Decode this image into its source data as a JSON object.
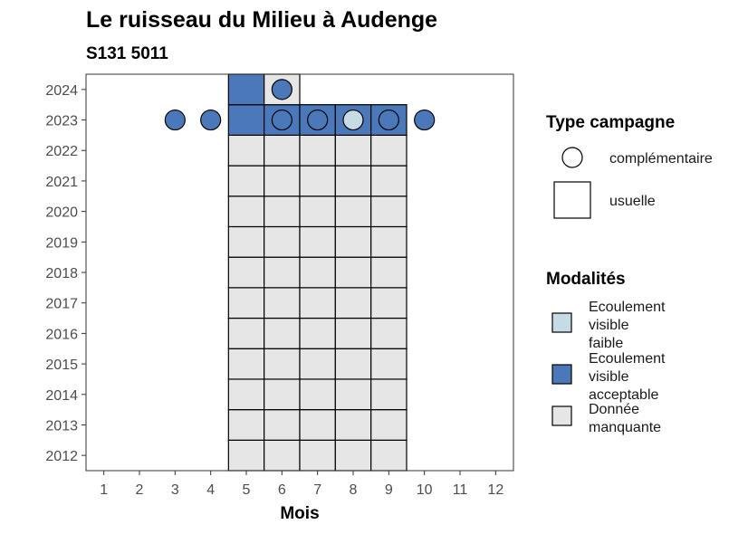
{
  "chart_data": {
    "type": "heatmap",
    "title": "Le ruisseau du Milieu à Audenge",
    "subtitle": "S131 5011",
    "xlabel": "Mois",
    "ylabel": "",
    "x_ticks": [
      "1",
      "2",
      "3",
      "4",
      "5",
      "6",
      "7",
      "8",
      "9",
      "10",
      "11",
      "12"
    ],
    "y_ticks": [
      "2012",
      "2013",
      "2014",
      "2015",
      "2016",
      "2017",
      "2018",
      "2019",
      "2020",
      "2021",
      "2022",
      "2023",
      "2024"
    ],
    "xlim": [
      0.5,
      12.5
    ],
    "ylim": [
      2011.5,
      2024.5
    ],
    "legend_type": {
      "title": "Type campagne",
      "entries": [
        {
          "label": "complémentaire",
          "shape": "circle"
        },
        {
          "label": "usuelle",
          "shape": "square"
        }
      ]
    },
    "legend_modalites": {
      "title": "Modalités",
      "entries": [
        {
          "key": "faible",
          "lines": [
            "Ecoulement",
            "visible",
            "faible"
          ],
          "color": "#c6dbe6"
        },
        {
          "key": "acceptable",
          "lines": [
            "Ecoulement",
            "visible",
            "acceptable"
          ],
          "color": "#4a78b8"
        },
        {
          "key": "manquante",
          "lines": [
            "Donnée",
            "manquante"
          ],
          "color": "#e6e6e6"
        }
      ]
    },
    "usuelle": [
      {
        "month": 5,
        "year": 2012,
        "modalite": "manquante"
      },
      {
        "month": 6,
        "year": 2012,
        "modalite": "manquante"
      },
      {
        "month": 7,
        "year": 2012,
        "modalite": "manquante"
      },
      {
        "month": 8,
        "year": 2012,
        "modalite": "manquante"
      },
      {
        "month": 9,
        "year": 2012,
        "modalite": "manquante"
      },
      {
        "month": 5,
        "year": 2013,
        "modalite": "manquante"
      },
      {
        "month": 6,
        "year": 2013,
        "modalite": "manquante"
      },
      {
        "month": 7,
        "year": 2013,
        "modalite": "manquante"
      },
      {
        "month": 8,
        "year": 2013,
        "modalite": "manquante"
      },
      {
        "month": 9,
        "year": 2013,
        "modalite": "manquante"
      },
      {
        "month": 5,
        "year": 2014,
        "modalite": "manquante"
      },
      {
        "month": 6,
        "year": 2014,
        "modalite": "manquante"
      },
      {
        "month": 7,
        "year": 2014,
        "modalite": "manquante"
      },
      {
        "month": 8,
        "year": 2014,
        "modalite": "manquante"
      },
      {
        "month": 9,
        "year": 2014,
        "modalite": "manquante"
      },
      {
        "month": 5,
        "year": 2015,
        "modalite": "manquante"
      },
      {
        "month": 6,
        "year": 2015,
        "modalite": "manquante"
      },
      {
        "month": 7,
        "year": 2015,
        "modalite": "manquante"
      },
      {
        "month": 8,
        "year": 2015,
        "modalite": "manquante"
      },
      {
        "month": 9,
        "year": 2015,
        "modalite": "manquante"
      },
      {
        "month": 5,
        "year": 2016,
        "modalite": "manquante"
      },
      {
        "month": 6,
        "year": 2016,
        "modalite": "manquante"
      },
      {
        "month": 7,
        "year": 2016,
        "modalite": "manquante"
      },
      {
        "month": 8,
        "year": 2016,
        "modalite": "manquante"
      },
      {
        "month": 9,
        "year": 2016,
        "modalite": "manquante"
      },
      {
        "month": 5,
        "year": 2017,
        "modalite": "manquante"
      },
      {
        "month": 6,
        "year": 2017,
        "modalite": "manquante"
      },
      {
        "month": 7,
        "year": 2017,
        "modalite": "manquante"
      },
      {
        "month": 8,
        "year": 2017,
        "modalite": "manquante"
      },
      {
        "month": 9,
        "year": 2017,
        "modalite": "manquante"
      },
      {
        "month": 5,
        "year": 2018,
        "modalite": "manquante"
      },
      {
        "month": 6,
        "year": 2018,
        "modalite": "manquante"
      },
      {
        "month": 7,
        "year": 2018,
        "modalite": "manquante"
      },
      {
        "month": 8,
        "year": 2018,
        "modalite": "manquante"
      },
      {
        "month": 9,
        "year": 2018,
        "modalite": "manquante"
      },
      {
        "month": 5,
        "year": 2019,
        "modalite": "manquante"
      },
      {
        "month": 6,
        "year": 2019,
        "modalite": "manquante"
      },
      {
        "month": 7,
        "year": 2019,
        "modalite": "manquante"
      },
      {
        "month": 8,
        "year": 2019,
        "modalite": "manquante"
      },
      {
        "month": 9,
        "year": 2019,
        "modalite": "manquante"
      },
      {
        "month": 5,
        "year": 2020,
        "modalite": "manquante"
      },
      {
        "month": 6,
        "year": 2020,
        "modalite": "manquante"
      },
      {
        "month": 7,
        "year": 2020,
        "modalite": "manquante"
      },
      {
        "month": 8,
        "year": 2020,
        "modalite": "manquante"
      },
      {
        "month": 9,
        "year": 2020,
        "modalite": "manquante"
      },
      {
        "month": 5,
        "year": 2021,
        "modalite": "manquante"
      },
      {
        "month": 6,
        "year": 2021,
        "modalite": "manquante"
      },
      {
        "month": 7,
        "year": 2021,
        "modalite": "manquante"
      },
      {
        "month": 8,
        "year": 2021,
        "modalite": "manquante"
      },
      {
        "month": 9,
        "year": 2021,
        "modalite": "manquante"
      },
      {
        "month": 5,
        "year": 2022,
        "modalite": "manquante"
      },
      {
        "month": 6,
        "year": 2022,
        "modalite": "manquante"
      },
      {
        "month": 7,
        "year": 2022,
        "modalite": "manquante"
      },
      {
        "month": 8,
        "year": 2022,
        "modalite": "manquante"
      },
      {
        "month": 9,
        "year": 2022,
        "modalite": "manquante"
      },
      {
        "month": 5,
        "year": 2023,
        "modalite": "acceptable"
      },
      {
        "month": 6,
        "year": 2023,
        "modalite": "acceptable"
      },
      {
        "month": 7,
        "year": 2023,
        "modalite": "acceptable"
      },
      {
        "month": 8,
        "year": 2023,
        "modalite": "acceptable"
      },
      {
        "month": 9,
        "year": 2023,
        "modalite": "acceptable"
      },
      {
        "month": 5,
        "year": 2024,
        "modalite": "acceptable"
      },
      {
        "month": 6,
        "year": 2024,
        "modalite": "manquante"
      }
    ],
    "complementaire": [
      {
        "month": 3,
        "year": 2023,
        "modalite": "acceptable"
      },
      {
        "month": 4,
        "year": 2023,
        "modalite": "acceptable"
      },
      {
        "month": 6,
        "year": 2023,
        "modalite": "acceptable"
      },
      {
        "month": 7,
        "year": 2023,
        "modalite": "acceptable"
      },
      {
        "month": 8,
        "year": 2023,
        "modalite": "faible"
      },
      {
        "month": 9,
        "year": 2023,
        "modalite": "acceptable"
      },
      {
        "month": 10,
        "year": 2023,
        "modalite": "acceptable"
      },
      {
        "month": 6,
        "year": 2024,
        "modalite": "acceptable"
      }
    ]
  }
}
